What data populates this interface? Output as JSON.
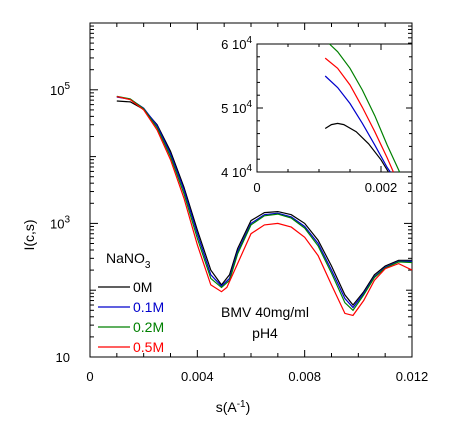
{
  "chart_data": [
    {
      "type": "line",
      "role": "main",
      "xlabel_base": "s(A",
      "xlabel_sup": "-1",
      "xlabel_end": ")",
      "ylabel": "I(c,s)",
      "xlim": [
        0,
        0.012
      ],
      "ylim_log": [
        10,
        1000000
      ],
      "yscale": "log",
      "x_ticks": [
        0,
        0.004,
        0.008,
        0.012
      ],
      "x_tick_labels": [
        "0",
        "0.004",
        "0.008",
        "0.012"
      ],
      "y_ticks": [
        10,
        1000,
        100000
      ],
      "y_tick_labels": [
        {
          "base": "10",
          "sup": ""
        },
        {
          "base": "10",
          "sup": "3"
        },
        {
          "base": "10",
          "sup": "5"
        }
      ],
      "legend_title_base": "NaNO",
      "legend_title_sub": "3",
      "annotation_line1": "BMV 40mg/ml",
      "annotation_line2": "pH4",
      "series": [
        {
          "name": "0M",
          "color": "#000000",
          "x": [
            0.001,
            0.0015,
            0.002,
            0.0025,
            0.003,
            0.0035,
            0.004,
            0.0045,
            0.0049,
            0.0052,
            0.0055,
            0.006,
            0.0065,
            0.007,
            0.0075,
            0.008,
            0.0085,
            0.009,
            0.0095,
            0.0098,
            0.0102,
            0.0106,
            0.011,
            0.0115,
            0.012
          ],
          "y": [
            68000,
            66000,
            51000,
            30000,
            12000,
            3500,
            800,
            200,
            120,
            170,
            420,
            1100,
            1450,
            1500,
            1350,
            1000,
            560,
            230,
            85,
            60,
            95,
            170,
            230,
            280,
            280
          ]
        },
        {
          "name": "0.1M",
          "color": "#0000cc",
          "x": [
            0.001,
            0.0015,
            0.002,
            0.0025,
            0.003,
            0.0035,
            0.004,
            0.0045,
            0.0049,
            0.0052,
            0.0055,
            0.006,
            0.0065,
            0.007,
            0.0075,
            0.008,
            0.0085,
            0.009,
            0.0095,
            0.0098,
            0.0102,
            0.0106,
            0.011,
            0.0115,
            0.012
          ],
          "y": [
            78000,
            72000,
            53000,
            29000,
            11000,
            3200,
            700,
            170,
            115,
            150,
            380,
            1000,
            1350,
            1420,
            1250,
            900,
            500,
            200,
            75,
            55,
            90,
            160,
            220,
            270,
            270
          ]
        },
        {
          "name": "0.2M",
          "color": "#008000",
          "x": [
            0.001,
            0.0015,
            0.002,
            0.0025,
            0.003,
            0.0035,
            0.004,
            0.0045,
            0.0049,
            0.0052,
            0.0055,
            0.006,
            0.0065,
            0.007,
            0.0075,
            0.008,
            0.0085,
            0.009,
            0.0095,
            0.0098,
            0.0102,
            0.0106,
            0.011,
            0.0115,
            0.012
          ],
          "y": [
            80000,
            73000,
            52000,
            27000,
            10000,
            2800,
            600,
            150,
            110,
            140,
            350,
            950,
            1300,
            1380,
            1200,
            850,
            460,
            180,
            65,
            50,
            85,
            155,
            215,
            265,
            260
          ]
        },
        {
          "name": "0.5M",
          "color": "#ff0000",
          "x": [
            0.001,
            0.0015,
            0.002,
            0.0025,
            0.003,
            0.0035,
            0.004,
            0.0045,
            0.0049,
            0.0051,
            0.0055,
            0.006,
            0.0065,
            0.007,
            0.0075,
            0.008,
            0.0085,
            0.009,
            0.0095,
            0.0098,
            0.0102,
            0.0106,
            0.011,
            0.0115,
            0.012
          ],
          "y": [
            79000,
            71000,
            50000,
            25000,
            9000,
            2400,
            480,
            120,
            95,
            110,
            250,
            700,
            950,
            1000,
            880,
            620,
            330,
            120,
            45,
            42,
            70,
            140,
            210,
            250,
            200
          ]
        }
      ]
    },
    {
      "type": "line",
      "role": "inset",
      "xlim": [
        0,
        0.0025
      ],
      "ylim": [
        40000,
        60000
      ],
      "x_ticks": [
        0,
        0.002
      ],
      "x_tick_labels": [
        "0",
        "0.002"
      ],
      "y_ticks": [
        40000,
        50000,
        60000
      ],
      "y_tick_labels": [
        {
          "base": "4 10",
          "sup": "4"
        },
        {
          "base": "5 10",
          "sup": "4"
        },
        {
          "base": "6 10",
          "sup": "4"
        }
      ],
      "series": [
        {
          "name": "0M",
          "color": "#000000",
          "x": [
            0.0011,
            0.0012,
            0.0013,
            0.0014,
            0.0016,
            0.0018,
            0.002,
            0.00212
          ],
          "y": [
            46800,
            47400,
            47600,
            47400,
            46300,
            44400,
            41900,
            40000
          ]
        },
        {
          "name": "0.1M",
          "color": "#0000cc",
          "x": [
            0.0011,
            0.0013,
            0.0015,
            0.0017,
            0.0019,
            0.0021,
            0.00215
          ],
          "y": [
            55000,
            53200,
            50700,
            47600,
            44200,
            40700,
            40000
          ]
        },
        {
          "name": "0.2M",
          "color": "#008000",
          "x": [
            0.00117,
            0.0013,
            0.0015,
            0.0017,
            0.0019,
            0.0021,
            0.0023
          ],
          "y": [
            60000,
            58800,
            56200,
            52800,
            48800,
            44200,
            40000
          ]
        },
        {
          "name": "0.5M",
          "color": "#ff0000",
          "x": [
            0.0011,
            0.0013,
            0.0015,
            0.0017,
            0.0019,
            0.0021,
            0.0022
          ],
          "y": [
            57800,
            56200,
            53600,
            50100,
            46300,
            42200,
            40000
          ]
        }
      ]
    }
  ]
}
